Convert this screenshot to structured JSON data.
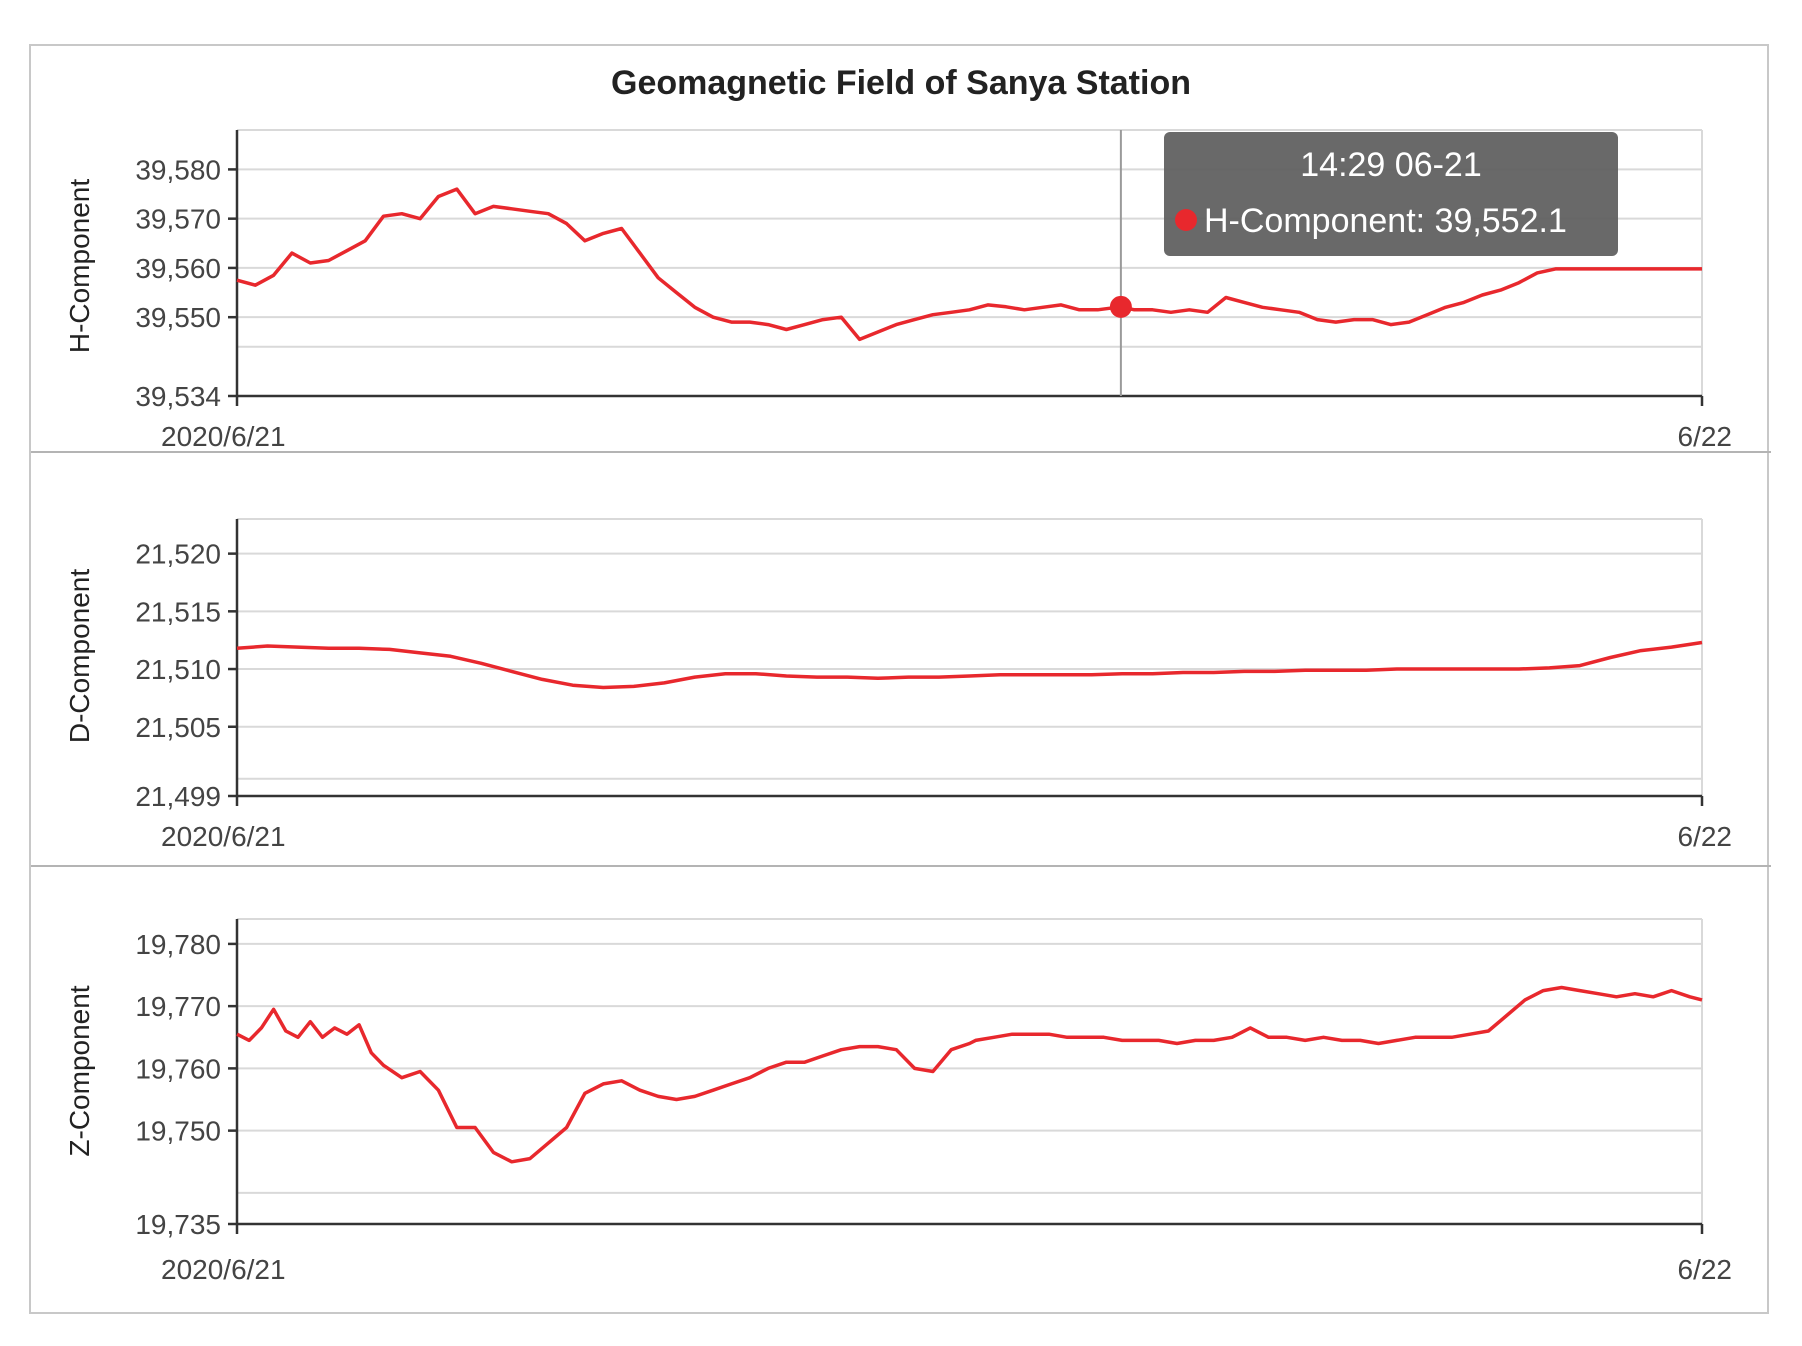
{
  "chart_data": {
    "title": "Geomagnetic Field of Sanya Station",
    "color": "#e8282d",
    "panels": [
      {
        "type": "line",
        "ylabel": "H-Component",
        "series_name": "H-Component",
        "ylim": [
          39534,
          39588
        ],
        "yticks": [
          39534,
          39550,
          39560,
          39570,
          39580
        ],
        "ytick_labels": [
          "39,534",
          "39,550",
          "39,560",
          "39,570",
          "39,580"
        ],
        "extra_grid": [
          39544
        ],
        "x_labels": [
          "2020/6/21",
          "6/22"
        ],
        "xlim": [
          0,
          24
        ],
        "x": [
          0,
          0.3,
          0.6,
          0.9,
          1.2,
          1.5,
          1.8,
          2.1,
          2.4,
          2.7,
          3.0,
          3.3,
          3.6,
          3.9,
          4.2,
          4.5,
          4.8,
          5.1,
          5.4,
          5.7,
          6.0,
          6.3,
          6.6,
          6.9,
          7.2,
          7.5,
          7.8,
          8.1,
          8.4,
          8.7,
          9.0,
          9.3,
          9.6,
          9.9,
          10.2,
          10.5,
          10.8,
          11.1,
          11.4,
          11.7,
          12.0,
          12.3,
          12.6,
          12.9,
          13.2,
          13.5,
          13.8,
          14.1,
          14.48,
          14.7,
          15.0,
          15.3,
          15.6,
          15.9,
          16.2,
          16.5,
          16.8,
          17.1,
          17.4,
          17.7,
          18.0,
          18.3,
          18.6,
          18.9,
          19.2,
          19.5,
          19.8,
          20.1,
          20.4,
          20.7,
          21.0,
          21.3,
          21.6,
          21.9,
          22.2,
          22.5,
          22.8,
          23.1,
          23.4,
          23.7,
          24.0
        ],
        "values": [
          39557.5,
          39556.5,
          39558.5,
          39563,
          39561,
          39561.5,
          39563.5,
          39565.5,
          39570.5,
          39571,
          39570,
          39574.5,
          39576,
          39571,
          39572.5,
          39572,
          39571.5,
          39571,
          39569,
          39565.5,
          39567,
          39568,
          39563,
          39558,
          39555,
          39552,
          39550,
          39549,
          39549,
          39548.5,
          39547.5,
          39548.5,
          39549.5,
          39550,
          39545.5,
          39547,
          39548.5,
          39549.5,
          39550.5,
          39551,
          39551.5,
          39552.5,
          39552.1,
          39551.5,
          39552,
          39552.5,
          39551.5,
          39551.5,
          39552.1,
          39551.5,
          39551.5,
          39551,
          39551.5,
          39551,
          39554,
          39553,
          39552,
          39551.5,
          39551,
          39549.5,
          39549,
          39549.5,
          39549.5,
          39548.5,
          39549,
          39550.5,
          39552,
          39553,
          39554.5,
          39555.5,
          39557,
          39559,
          39559.8,
          39559.8,
          39559.8,
          39559.8,
          39559.8,
          39559.8,
          39559.8,
          39559.8,
          39559.8
        ]
      },
      {
        "type": "line",
        "ylabel": "D-Component",
        "series_name": "D-Component",
        "ylim": [
          21499,
          21523
        ],
        "yticks": [
          21499,
          21505,
          21510,
          21515,
          21520
        ],
        "ytick_labels": [
          "21,499",
          "21,505",
          "21,510",
          "21,515",
          "21,520"
        ],
        "extra_grid": [
          21500.5
        ],
        "x_labels": [
          "2020/6/21",
          "6/22"
        ],
        "xlim": [
          0,
          24
        ],
        "x": [
          0,
          0.5,
          1,
          1.5,
          2,
          2.5,
          3,
          3.5,
          4,
          4.5,
          5,
          5.5,
          6,
          6.5,
          7,
          7.5,
          8,
          8.5,
          9,
          9.5,
          10,
          10.5,
          11,
          11.5,
          12,
          12.5,
          13,
          13.5,
          14,
          14.5,
          15,
          15.5,
          16,
          16.5,
          17,
          17.5,
          18,
          18.5,
          19,
          19.5,
          20,
          20.5,
          21,
          21.5,
          22,
          22.5,
          23,
          23.5,
          24
        ],
        "values": [
          21511.8,
          21512.0,
          21511.9,
          21511.8,
          21511.8,
          21511.7,
          21511.4,
          21511.1,
          21510.5,
          21509.8,
          21509.1,
          21508.6,
          21508.4,
          21508.5,
          21508.8,
          21509.3,
          21509.6,
          21509.6,
          21509.4,
          21509.3,
          21509.3,
          21509.2,
          21509.3,
          21509.3,
          21509.4,
          21509.5,
          21509.5,
          21509.5,
          21509.5,
          21509.6,
          21509.6,
          21509.7,
          21509.7,
          21509.8,
          21509.8,
          21509.9,
          21509.9,
          21509.9,
          21510.0,
          21510.0,
          21510.0,
          21510.0,
          21510.0,
          21510.1,
          21510.3,
          21511.0,
          21511.6,
          21511.9,
          21512.3
        ]
      },
      {
        "type": "line",
        "ylabel": "Z-Component",
        "series_name": "Z-Component",
        "ylim": [
          19735,
          19784
        ],
        "yticks": [
          19735,
          19750,
          19760,
          19770,
          19780
        ],
        "ytick_labels": [
          "19,735",
          "19,750",
          "19,760",
          "19,770",
          "19,780"
        ],
        "extra_grid": [
          19740
        ],
        "x_labels": [
          "2020/6/21",
          "6/22"
        ],
        "xlim": [
          0,
          24
        ],
        "x": [
          0,
          0.2,
          0.4,
          0.6,
          0.8,
          1.0,
          1.2,
          1.4,
          1.6,
          1.8,
          2.0,
          2.2,
          2.4,
          2.7,
          3.0,
          3.3,
          3.6,
          3.9,
          4.2,
          4.5,
          4.8,
          5.1,
          5.4,
          5.7,
          6.0,
          6.3,
          6.6,
          6.9,
          7.2,
          7.5,
          7.8,
          8.1,
          8.4,
          8.7,
          9.0,
          9.3,
          9.6,
          9.9,
          10.2,
          10.5,
          10.8,
          11.1,
          11.4,
          11.7,
          12.0,
          12.1,
          12.4,
          12.7,
          13.0,
          13.3,
          13.6,
          13.9,
          14.2,
          14.5,
          14.8,
          15.1,
          15.4,
          15.7,
          16.0,
          16.3,
          16.6,
          16.9,
          17.2,
          17.5,
          17.8,
          18.1,
          18.4,
          18.7,
          19.0,
          19.3,
          19.6,
          19.9,
          20.2,
          20.5,
          20.8,
          21.1,
          21.4,
          21.7,
          22.0,
          22.3,
          22.6,
          22.9,
          23.2,
          23.5,
          23.8,
          24.0
        ],
        "values": [
          19765.5,
          19764.5,
          19766.5,
          19769.5,
          19766,
          19765,
          19767.5,
          19765,
          19766.5,
          19765.5,
          19767,
          19762.5,
          19760.5,
          19758.5,
          19759.5,
          19756.5,
          19750.5,
          19750.5,
          19746.5,
          19745,
          19745.5,
          19748,
          19750.5,
          19756,
          19757.5,
          19758,
          19756.5,
          19755.5,
          19755,
          19755.5,
          19756.5,
          19757.5,
          19758.5,
          19760,
          19761,
          19761,
          19762,
          19763,
          19763.5,
          19763.5,
          19763,
          19760,
          19759.5,
          19763,
          19764,
          19764.5,
          19765,
          19765.5,
          19765.5,
          19765.5,
          19765,
          19765,
          19765,
          19764.5,
          19764.5,
          19764.5,
          19764,
          19764.5,
          19764.5,
          19765,
          19766.5,
          19765,
          19765,
          19764.5,
          19765,
          19764.5,
          19764.5,
          19764,
          19764.5,
          19765,
          19765,
          19765,
          19765.5,
          19766,
          19768.5,
          19771,
          19772.5,
          19773,
          19772.5,
          19772,
          19771.5,
          19772,
          19771.5,
          19772.5,
          19771.5,
          19771
        ]
      }
    ],
    "tooltip": {
      "time": "14:29 06-21",
      "series": "H-Component",
      "value_text": "39,552.1",
      "x": 14.48,
      "value": 39552.1,
      "panel": 0
    }
  }
}
